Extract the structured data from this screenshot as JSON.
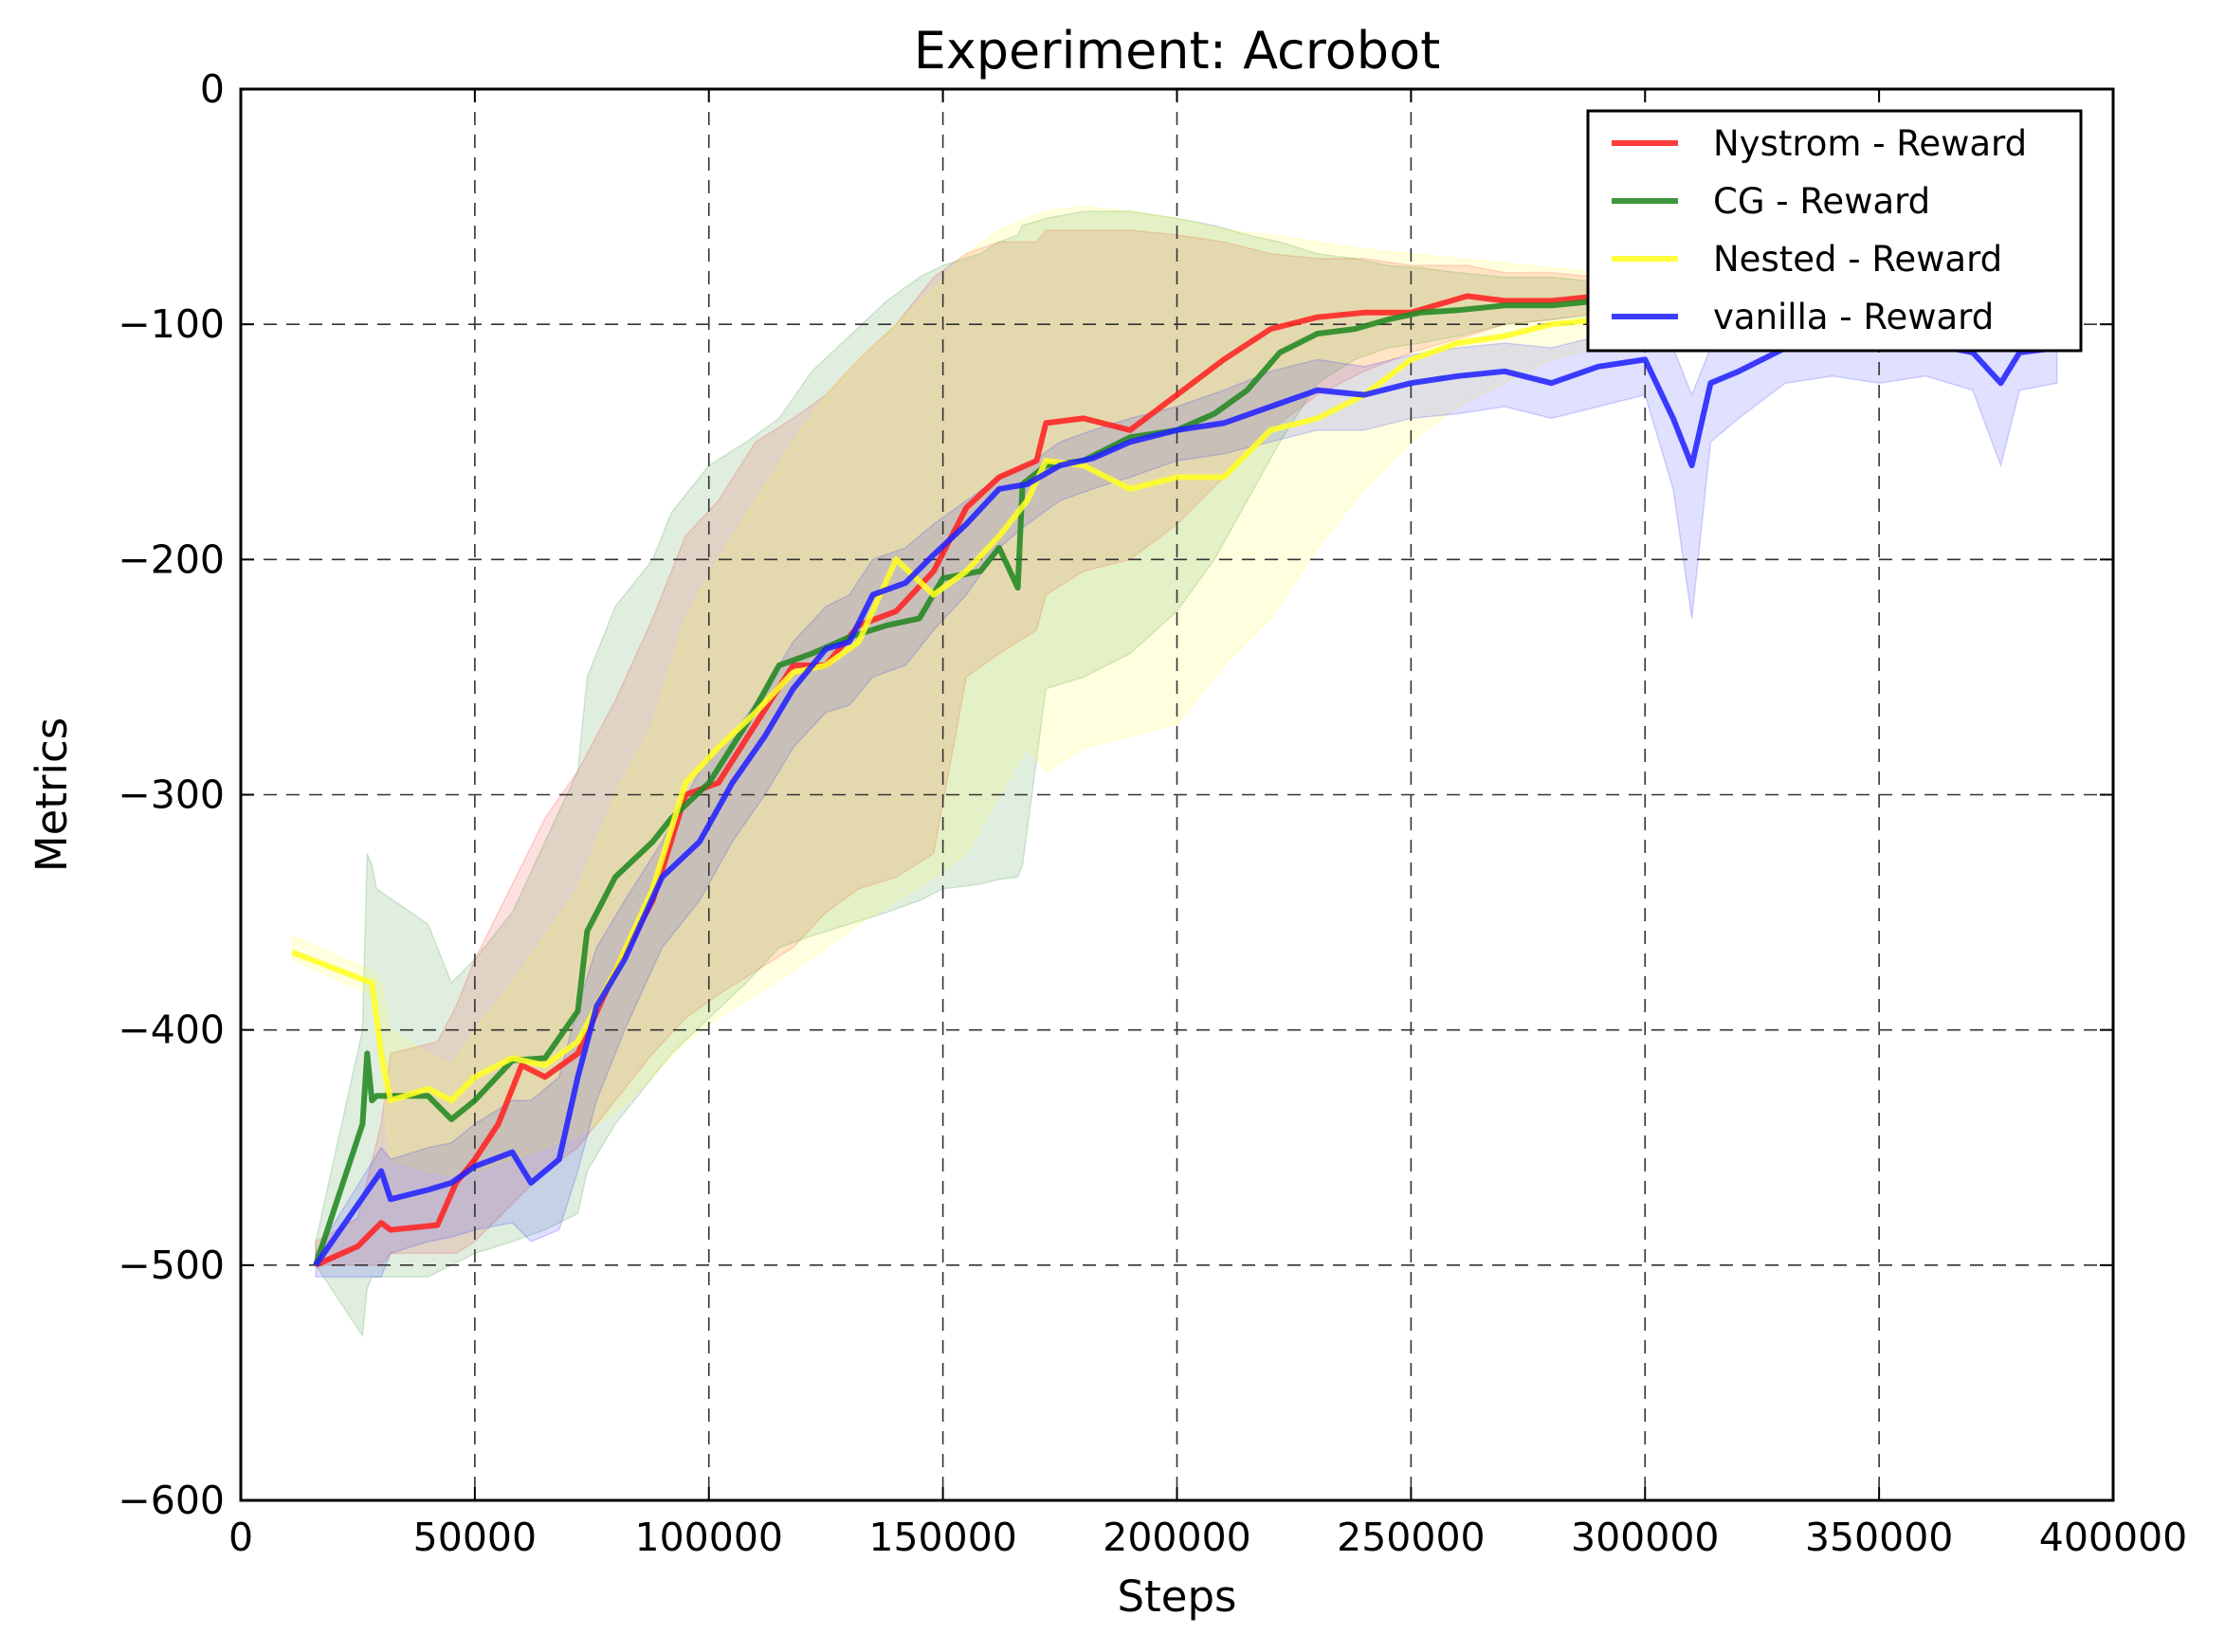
{
  "chart_data": {
    "type": "line",
    "title": "Experiment: Acrobot",
    "xlabel": "Steps",
    "ylabel": "Metrics",
    "xlim": [
      0,
      400000
    ],
    "ylim": [
      -600,
      0
    ],
    "xticks": [
      0,
      50000,
      100000,
      150000,
      200000,
      250000,
      300000,
      350000,
      400000
    ],
    "xtick_labels": [
      "0",
      "50000",
      "100000",
      "150000",
      "200000",
      "250000",
      "300000",
      "350000",
      "400000"
    ],
    "yticks": [
      0,
      -100,
      -200,
      -300,
      -400,
      -500,
      -600
    ],
    "ytick_labels": [
      "0",
      "−100",
      "−200",
      "−300",
      "−400",
      "−500",
      "−600"
    ],
    "grid": true,
    "legend_position": "top-right",
    "series": [
      {
        "name": "Nystrom - Reward",
        "color": "#ff2222",
        "x": [
          16000,
          25000,
          30000,
          32000,
          42000,
          46000,
          50000,
          55000,
          60000,
          65000,
          72000,
          80000,
          88000,
          95000,
          102000,
          110000,
          118000,
          125000,
          132000,
          140000,
          148000,
          155000,
          162000,
          170000,
          172000,
          180000,
          190000,
          200000,
          210000,
          220000,
          230000,
          240000,
          250000,
          262000,
          270000,
          280000,
          290000
        ],
        "y": [
          -500,
          -492,
          -482,
          -485,
          -483,
          -465,
          -455,
          -440,
          -415,
          -420,
          -410,
          -375,
          -345,
          -300,
          -295,
          -270,
          -245,
          -245,
          -228,
          -222,
          -205,
          -178,
          -165,
          -158,
          -142,
          -140,
          -145,
          -130,
          -115,
          -102,
          -97,
          -95,
          -95,
          -88,
          -90,
          -90,
          -88
        ],
        "band_upper": [
          -490,
          -480,
          -440,
          -410,
          -405,
          -390,
          -370,
          -350,
          -330,
          -310,
          -290,
          -260,
          -225,
          -190,
          -175,
          -150,
          -140,
          -130,
          -115,
          -100,
          -80,
          -70,
          -65,
          -65,
          -60,
          -60,
          -60,
          -62,
          -65,
          -70,
          -72,
          -72,
          -75,
          -75,
          -78,
          -78,
          -80
        ],
        "band_lower": [
          -500,
          -500,
          -500,
          -495,
          -495,
          -495,
          -490,
          -480,
          -470,
          -460,
          -450,
          -430,
          -410,
          -395,
          -385,
          -375,
          -365,
          -350,
          -340,
          -335,
          -325,
          -250,
          -240,
          -230,
          -215,
          -205,
          -200,
          -185,
          -165,
          -145,
          -130,
          -120,
          -112,
          -105,
          -100,
          -98,
          -95
        ]
      },
      {
        "name": "CG - Reward",
        "color": "#228822",
        "x": [
          16000,
          26000,
          27000,
          28000,
          29000,
          40000,
          45000,
          50000,
          58000,
          65000,
          72000,
          74000,
          80000,
          88000,
          92000,
          100000,
          108000,
          115000,
          122000,
          130000,
          138000,
          145000,
          150000,
          158000,
          162000,
          166000,
          167000,
          172000,
          180000,
          190000,
          200000,
          208000,
          215000,
          222000,
          230000,
          238000,
          245000,
          252000,
          260000,
          270000,
          280000,
          290000
        ],
        "y": [
          -500,
          -440,
          -410,
          -430,
          -428,
          -428,
          -438,
          -430,
          -413,
          -412,
          -392,
          -358,
          -335,
          -320,
          -310,
          -295,
          -270,
          -245,
          -240,
          -233,
          -228,
          -225,
          -208,
          -205,
          -195,
          -212,
          -168,
          -160,
          -158,
          -148,
          -145,
          -138,
          -128,
          -112,
          -104,
          -102,
          -98,
          -95,
          -94,
          -92,
          -92,
          -90
        ],
        "band_upper": [
          -490,
          -400,
          -325,
          -330,
          -340,
          -355,
          -380,
          -370,
          -350,
          -320,
          -290,
          -250,
          -220,
          -200,
          -180,
          -160,
          -150,
          -140,
          -120,
          -105,
          -90,
          -80,
          -75,
          -70,
          -65,
          -62,
          -58,
          -55,
          -52,
          -52,
          -55,
          -58,
          -62,
          -65,
          -70,
          -72,
          -75,
          -76,
          -78,
          -80,
          -80,
          -82
        ],
        "band_lower": [
          -500,
          -530,
          -510,
          -505,
          -505,
          -505,
          -500,
          -495,
          -490,
          -485,
          -478,
          -460,
          -440,
          -420,
          -410,
          -395,
          -380,
          -365,
          -360,
          -355,
          -350,
          -345,
          -340,
          -338,
          -336,
          -335,
          -330,
          -255,
          -250,
          -240,
          -222,
          -200,
          -175,
          -150,
          -125,
          -115,
          -110,
          -108,
          -105,
          -100,
          -98,
          -96
        ]
      },
      {
        "name": "Nested - Reward",
        "color": "#ffff22",
        "x": [
          11000,
          28000,
          30000,
          32000,
          40000,
          45000,
          50000,
          58000,
          65000,
          72000,
          80000,
          88000,
          95000,
          102000,
          110000,
          118000,
          125000,
          132000,
          140000,
          148000,
          155000,
          162000,
          168000,
          172000,
          180000,
          190000,
          200000,
          210000,
          220000,
          230000,
          240000,
          250000,
          260000,
          270000,
          280000,
          290000,
          300000
        ],
        "y": [
          -367,
          -380,
          -410,
          -430,
          -425,
          -430,
          -420,
          -412,
          -415,
          -405,
          -375,
          -340,
          -295,
          -280,
          -265,
          -248,
          -245,
          -235,
          -200,
          -215,
          -205,
          -190,
          -175,
          -158,
          -160,
          -170,
          -165,
          -165,
          -145,
          -140,
          -130,
          -115,
          -108,
          -105,
          -100,
          -98,
          -97
        ],
        "band_upper": [
          -360,
          -375,
          -380,
          -400,
          -410,
          -415,
          -400,
          -380,
          -360,
          -340,
          -300,
          -270,
          -225,
          -200,
          -175,
          -150,
          -130,
          -115,
          -100,
          -85,
          -70,
          -60,
          -55,
          -52,
          -50,
          -52,
          -55,
          -60,
          -62,
          -65,
          -68,
          -70,
          -72,
          -74,
          -76,
          -78,
          -80
        ],
        "band_lower": [
          -370,
          -385,
          -420,
          -455,
          -460,
          -462,
          -460,
          -455,
          -450,
          -445,
          -435,
          -420,
          -405,
          -395,
          -385,
          -375,
          -365,
          -355,
          -345,
          -335,
          -325,
          -300,
          -280,
          -290,
          -280,
          -275,
          -270,
          -245,
          -225,
          -195,
          -170,
          -150,
          -135,
          -125,
          -115,
          -110,
          -108
        ]
      },
      {
        "name": "vanilla - Reward",
        "color": "#2222ff",
        "x": [
          16000,
          30000,
          32000,
          40000,
          45000,
          50000,
          58000,
          62000,
          68000,
          72000,
          76000,
          82000,
          90000,
          98000,
          105000,
          112000,
          118000,
          125000,
          130000,
          135000,
          142000,
          148000,
          155000,
          162000,
          168000,
          175000,
          182000,
          190000,
          200000,
          210000,
          220000,
          230000,
          240000,
          250000,
          260000,
          270000,
          280000,
          290000,
          300000,
          306000,
          310000,
          314000,
          320000,
          330000,
          340000,
          350000,
          360000,
          370000,
          376000,
          380000,
          388000
        ],
        "y": [
          -500,
          -460,
          -472,
          -468,
          -465,
          -458,
          -452,
          -465,
          -455,
          -420,
          -390,
          -370,
          -335,
          -320,
          -295,
          -275,
          -255,
          -238,
          -235,
          -215,
          -210,
          -198,
          -185,
          -170,
          -168,
          -160,
          -157,
          -150,
          -145,
          -142,
          -135,
          -128,
          -130,
          -125,
          -122,
          -120,
          -125,
          -118,
          -115,
          -140,
          -160,
          -125,
          -120,
          -110,
          -108,
          -110,
          -108,
          -112,
          -125,
          -112,
          -110
        ],
        "band_upper": [
          -495,
          -450,
          -455,
          -450,
          -448,
          -440,
          -430,
          -430,
          -420,
          -390,
          -365,
          -345,
          -320,
          -290,
          -275,
          -255,
          -235,
          -220,
          -215,
          -200,
          -195,
          -185,
          -175,
          -165,
          -160,
          -150,
          -145,
          -140,
          -135,
          -128,
          -120,
          -115,
          -118,
          -113,
          -110,
          -108,
          -110,
          -105,
          -100,
          -110,
          -130,
          -110,
          -105,
          -100,
          -98,
          -100,
          -98,
          -100,
          -110,
          -100,
          -98
        ],
        "band_lower": [
          -505,
          -505,
          -495,
          -490,
          -488,
          -485,
          -482,
          -490,
          -485,
          -460,
          -430,
          -400,
          -365,
          -345,
          -320,
          -300,
          -280,
          -265,
          -262,
          -250,
          -245,
          -230,
          -215,
          -195,
          -185,
          -175,
          -170,
          -165,
          -158,
          -155,
          -150,
          -145,
          -145,
          -140,
          -138,
          -135,
          -140,
          -135,
          -130,
          -170,
          -225,
          -150,
          -140,
          -125,
          -122,
          -125,
          -122,
          -128,
          -160,
          -128,
          -125
        ]
      }
    ]
  }
}
